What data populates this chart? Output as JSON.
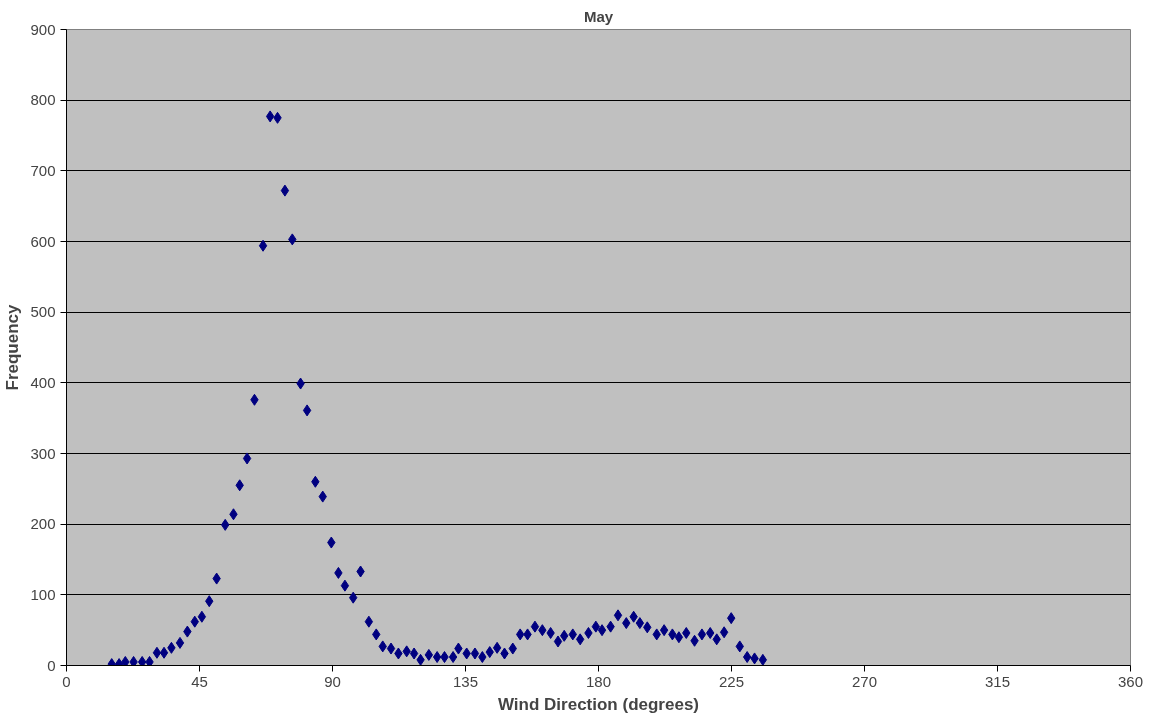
{
  "chart_data": {
    "type": "scatter",
    "title": "May",
    "xlabel": "Wind Direction (degrees)",
    "ylabel": "Frequency",
    "x": [
      15.3,
      17.8,
      19.9,
      22.7,
      25.6,
      28.1,
      30.6,
      33,
      35.5,
      38.4,
      40.9,
      43.4,
      45.8,
      48.3,
      50.8,
      53.7,
      56.5,
      58.6,
      61.1,
      63.6,
      66.5,
      68.9,
      71.4,
      73.9,
      76.4,
      79.2,
      81.4,
      84.2,
      86.7,
      89.6,
      92,
      94.2,
      97,
      99.5,
      102.3,
      104.8,
      107,
      109.8,
      112.3,
      115.1,
      117.6,
      119.8,
      122.6,
      125.4,
      127.9,
      130.8,
      132.6,
      135.4,
      138.2,
      140.7,
      143.2,
      145.7,
      148.2,
      151,
      153.5,
      156,
      158.5,
      161,
      163.8,
      166.3,
      168.4,
      171.3,
      173.8,
      176.6,
      179.1,
      181.2,
      184.1,
      186.6,
      189.4,
      191.9,
      194,
      196.5,
      199.7,
      202.2,
      205,
      207.2,
      209.7,
      212.5,
      215,
      217.8,
      220,
      222.5,
      224.9,
      227.8,
      230.3,
      232.8,
      235.6
    ],
    "series": [
      {
        "color": "#000080",
        "values": [
          2,
          2,
          5,
          5,
          5,
          5,
          18,
          18,
          25,
          32,
          48,
          62,
          69,
          91,
          123,
          199,
          214,
          255,
          293,
          376,
          594,
          777,
          775,
          672,
          603,
          399,
          361,
          260,
          239,
          174,
          131,
          113,
          96,
          133,
          62,
          44,
          27,
          24,
          17,
          20,
          17,
          8,
          15,
          12,
          12,
          12,
          24,
          17,
          17,
          12,
          19,
          25,
          17,
          24,
          44,
          44,
          55,
          50,
          46,
          34,
          42,
          44,
          37,
          46,
          55,
          50,
          55,
          71,
          60,
          69,
          60,
          54,
          44,
          50,
          44,
          40,
          46,
          35,
          44,
          46,
          37,
          47,
          67,
          27,
          12,
          10,
          8
        ]
      }
    ],
    "marker": "diamond",
    "xlim": [
      0,
      360
    ],
    "xticks": [
      0,
      45,
      90,
      135,
      180,
      225,
      270,
      315,
      360
    ],
    "ylim": [
      0,
      900
    ],
    "yticks": [
      0,
      100,
      200,
      300,
      400,
      500,
      600,
      700,
      800,
      900
    ],
    "grid": "y"
  }
}
